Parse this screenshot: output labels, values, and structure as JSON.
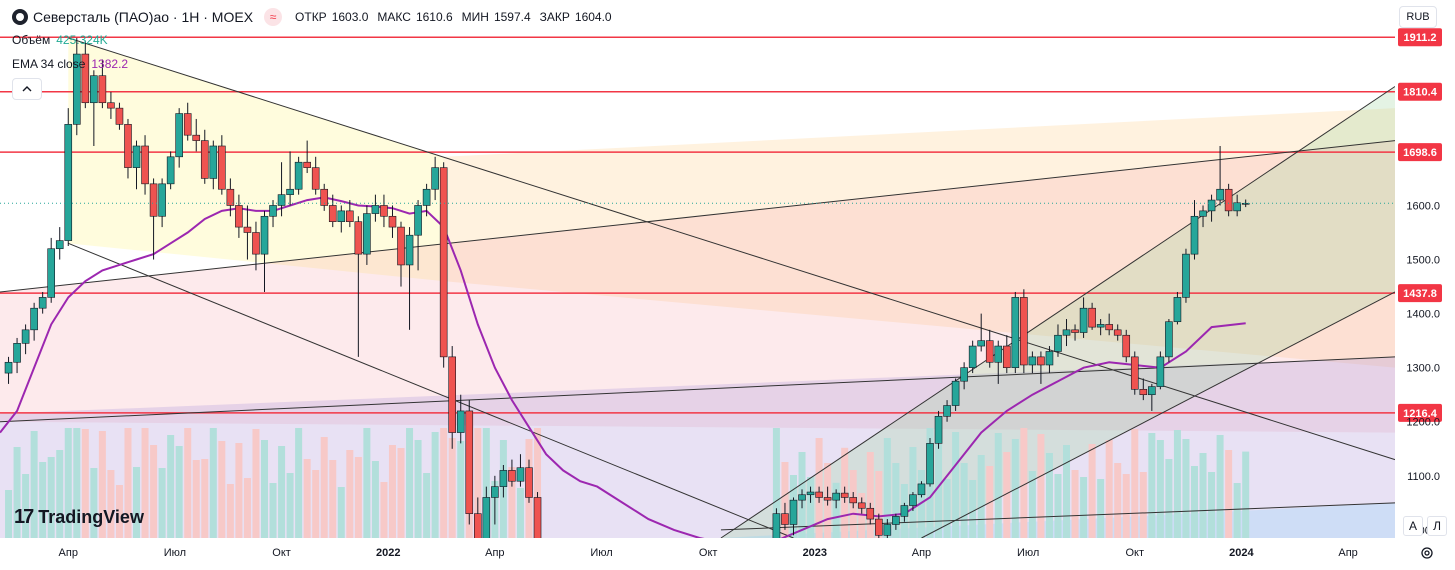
{
  "header": {
    "title": "Северсталь (ПАО)ао · 1Н · MOEX",
    "status_icon": "≈",
    "ohlc": [
      {
        "key": "ОТКР",
        "value": "1603.0"
      },
      {
        "key": "МАКС",
        "value": "1610.6"
      },
      {
        "key": "МИН",
        "value": "1597.4"
      },
      {
        "key": "ЗАКР",
        "value": "1604.0"
      }
    ],
    "volume_label": "Объём",
    "volume_value": "425.324K",
    "ema_label": "EMA 34 close",
    "ema_value": "1382.2",
    "currency": "RUB",
    "collapse_icon": "chevron-up-icon"
  },
  "branding": {
    "logo_text": "TradingView",
    "logo_mark": "17"
  },
  "controls": {
    "auto_label": "A",
    "log_label": "Л",
    "settings_icon": "gear-icon"
  },
  "chart_data": {
    "type": "candlestick",
    "ylim": [
      985,
      1980
    ],
    "y_ticks": [
      1000,
      1100,
      1200,
      1300,
      1400,
      1500,
      1600
    ],
    "x_ticks": [
      {
        "label": "Апр",
        "t": 2021.25
      },
      {
        "label": "Июл",
        "t": 2021.5
      },
      {
        "label": "Окт",
        "t": 2021.75
      },
      {
        "label": "2022",
        "t": 2022.0
      },
      {
        "label": "Апр",
        "t": 2022.25
      },
      {
        "label": "Июл",
        "t": 2022.5
      },
      {
        "label": "Окт",
        "t": 2022.75
      },
      {
        "label": "2023",
        "t": 2023.0
      },
      {
        "label": "Апр",
        "t": 2023.25
      },
      {
        "label": "Июл",
        "t": 2023.5
      },
      {
        "label": "Окт",
        "t": 2023.75
      },
      {
        "label": "2024",
        "t": 2024.0
      },
      {
        "label": "Апр",
        "t": 2024.25
      }
    ],
    "xlim": [
      2021.09,
      2024.36
    ],
    "horizontal_levels": [
      {
        "value": 1911.2,
        "label": "1911.2"
      },
      {
        "value": 1810.4,
        "label": "1810.4"
      },
      {
        "value": 1698.6,
        "label": "1698.6"
      },
      {
        "value": 1437.8,
        "label": "1437.8"
      },
      {
        "value": 1216.4,
        "label": "1216.4"
      }
    ],
    "colors": {
      "up": "#26a69a",
      "down": "#ef5350",
      "ema": "#9c27b0",
      "level": "#f23645",
      "volume_up": "#b2dfdb",
      "volume_down": "#f7c9c8"
    },
    "ohlc": [
      {
        "t": 2021.11,
        "o": 1290,
        "h": 1320,
        "l": 1270,
        "c": 1310
      },
      {
        "t": 2021.13,
        "o": 1310,
        "h": 1355,
        "l": 1290,
        "c": 1345
      },
      {
        "t": 2021.15,
        "o": 1345,
        "h": 1380,
        "l": 1325,
        "c": 1370
      },
      {
        "t": 2021.17,
        "o": 1370,
        "h": 1420,
        "l": 1350,
        "c": 1410
      },
      {
        "t": 2021.19,
        "o": 1410,
        "h": 1440,
        "l": 1400,
        "c": 1430
      },
      {
        "t": 2021.21,
        "o": 1430,
        "h": 1540,
        "l": 1420,
        "c": 1520
      },
      {
        "t": 2021.23,
        "o": 1520,
        "h": 1560,
        "l": 1500,
        "c": 1535
      },
      {
        "t": 2021.25,
        "o": 1535,
        "h": 1780,
        "l": 1525,
        "c": 1750
      },
      {
        "t": 2021.27,
        "o": 1750,
        "h": 1910,
        "l": 1730,
        "c": 1880
      },
      {
        "t": 2021.29,
        "o": 1880,
        "h": 1905,
        "l": 1780,
        "c": 1790
      },
      {
        "t": 2021.31,
        "o": 1790,
        "h": 1850,
        "l": 1710,
        "c": 1840
      },
      {
        "t": 2021.33,
        "o": 1840,
        "h": 1870,
        "l": 1780,
        "c": 1790
      },
      {
        "t": 2021.35,
        "o": 1790,
        "h": 1810,
        "l": 1760,
        "c": 1780
      },
      {
        "t": 2021.37,
        "o": 1780,
        "h": 1790,
        "l": 1740,
        "c": 1750
      },
      {
        "t": 2021.39,
        "o": 1750,
        "h": 1760,
        "l": 1650,
        "c": 1670
      },
      {
        "t": 2021.41,
        "o": 1670,
        "h": 1720,
        "l": 1630,
        "c": 1710
      },
      {
        "t": 2021.43,
        "o": 1710,
        "h": 1730,
        "l": 1620,
        "c": 1640
      },
      {
        "t": 2021.45,
        "o": 1640,
        "h": 1650,
        "l": 1500,
        "c": 1580
      },
      {
        "t": 2021.47,
        "o": 1580,
        "h": 1650,
        "l": 1560,
        "c": 1640
      },
      {
        "t": 2021.49,
        "o": 1640,
        "h": 1700,
        "l": 1630,
        "c": 1690
      },
      {
        "t": 2021.51,
        "o": 1690,
        "h": 1780,
        "l": 1670,
        "c": 1770
      },
      {
        "t": 2021.53,
        "o": 1770,
        "h": 1790,
        "l": 1720,
        "c": 1730
      },
      {
        "t": 2021.55,
        "o": 1730,
        "h": 1760,
        "l": 1700,
        "c": 1720
      },
      {
        "t": 2021.57,
        "o": 1720,
        "h": 1740,
        "l": 1640,
        "c": 1650
      },
      {
        "t": 2021.59,
        "o": 1650,
        "h": 1720,
        "l": 1630,
        "c": 1710
      },
      {
        "t": 2021.61,
        "o": 1710,
        "h": 1730,
        "l": 1620,
        "c": 1630
      },
      {
        "t": 2021.63,
        "o": 1630,
        "h": 1650,
        "l": 1580,
        "c": 1600
      },
      {
        "t": 2021.65,
        "o": 1600,
        "h": 1620,
        "l": 1540,
        "c": 1560
      },
      {
        "t": 2021.67,
        "o": 1560,
        "h": 1600,
        "l": 1500,
        "c": 1550
      },
      {
        "t": 2021.69,
        "o": 1550,
        "h": 1570,
        "l": 1480,
        "c": 1510
      },
      {
        "t": 2021.71,
        "o": 1510,
        "h": 1590,
        "l": 1440,
        "c": 1580
      },
      {
        "t": 2021.73,
        "o": 1580,
        "h": 1610,
        "l": 1560,
        "c": 1600
      },
      {
        "t": 2021.75,
        "o": 1600,
        "h": 1680,
        "l": 1580,
        "c": 1620
      },
      {
        "t": 2021.77,
        "o": 1620,
        "h": 1700,
        "l": 1600,
        "c": 1630
      },
      {
        "t": 2021.79,
        "o": 1630,
        "h": 1690,
        "l": 1620,
        "c": 1680
      },
      {
        "t": 2021.81,
        "o": 1680,
        "h": 1720,
        "l": 1660,
        "c": 1670
      },
      {
        "t": 2021.83,
        "o": 1670,
        "h": 1690,
        "l": 1620,
        "c": 1630
      },
      {
        "t": 2021.85,
        "o": 1630,
        "h": 1640,
        "l": 1590,
        "c": 1600
      },
      {
        "t": 2021.87,
        "o": 1600,
        "h": 1620,
        "l": 1560,
        "c": 1570
      },
      {
        "t": 2021.89,
        "o": 1570,
        "h": 1600,
        "l": 1550,
        "c": 1590
      },
      {
        "t": 2021.91,
        "o": 1590,
        "h": 1610,
        "l": 1560,
        "c": 1570
      },
      {
        "t": 2021.93,
        "o": 1570,
        "h": 1580,
        "l": 1320,
        "c": 1510
      },
      {
        "t": 2021.95,
        "o": 1510,
        "h": 1600,
        "l": 1490,
        "c": 1585
      },
      {
        "t": 2021.97,
        "o": 1585,
        "h": 1620,
        "l": 1570,
        "c": 1600
      },
      {
        "t": 2021.99,
        "o": 1600,
        "h": 1620,
        "l": 1560,
        "c": 1580
      },
      {
        "t": 2022.01,
        "o": 1580,
        "h": 1600,
        "l": 1540,
        "c": 1560
      },
      {
        "t": 2022.03,
        "o": 1560,
        "h": 1570,
        "l": 1450,
        "c": 1490
      },
      {
        "t": 2022.05,
        "o": 1490,
        "h": 1560,
        "l": 1370,
        "c": 1545
      },
      {
        "t": 2022.07,
        "o": 1545,
        "h": 1610,
        "l": 1480,
        "c": 1600
      },
      {
        "t": 2022.09,
        "o": 1600,
        "h": 1640,
        "l": 1580,
        "c": 1630
      },
      {
        "t": 2022.11,
        "o": 1630,
        "h": 1690,
        "l": 1610,
        "c": 1670
      },
      {
        "t": 2022.13,
        "o": 1670,
        "h": 1680,
        "l": 1300,
        "c": 1320
      },
      {
        "t": 2022.15,
        "o": 1320,
        "h": 1340,
        "l": 1150,
        "c": 1180
      },
      {
        "t": 2022.17,
        "o": 1180,
        "h": 1250,
        "l": 1160,
        "c": 1220
      },
      {
        "t": 2022.19,
        "o": 1220,
        "h": 1240,
        "l": 1010,
        "c": 1030
      },
      {
        "t": 2022.21,
        "o": 1030,
        "h": 1060,
        "l": 900,
        "c": 950
      },
      {
        "t": 2022.23,
        "o": 950,
        "h": 1080,
        "l": 920,
        "c": 1060
      },
      {
        "t": 2022.25,
        "o": 1060,
        "h": 1100,
        "l": 1010,
        "c": 1080
      },
      {
        "t": 2022.27,
        "o": 1080,
        "h": 1120,
        "l": 1060,
        "c": 1110
      },
      {
        "t": 2022.29,
        "o": 1110,
        "h": 1130,
        "l": 1080,
        "c": 1090
      },
      {
        "t": 2022.31,
        "o": 1090,
        "h": 1140,
        "l": 1080,
        "c": 1115
      },
      {
        "t": 2022.33,
        "o": 1115,
        "h": 1130,
        "l": 1050,
        "c": 1060
      },
      {
        "t": 2022.35,
        "o": 1060,
        "h": 1070,
        "l": 900,
        "c": 920
      },
      {
        "t": 2022.91,
        "o": 980,
        "h": 1040,
        "l": 970,
        "c": 1030
      },
      {
        "t": 2022.93,
        "o": 1030,
        "h": 1050,
        "l": 1000,
        "c": 1010
      },
      {
        "t": 2022.95,
        "o": 1010,
        "h": 1060,
        "l": 990,
        "c": 1055
      },
      {
        "t": 2022.97,
        "o": 1055,
        "h": 1075,
        "l": 1040,
        "c": 1065
      },
      {
        "t": 2022.99,
        "o": 1065,
        "h": 1080,
        "l": 1050,
        "c": 1070
      },
      {
        "t": 2023.01,
        "o": 1070,
        "h": 1080,
        "l": 1050,
        "c": 1060
      },
      {
        "t": 2023.03,
        "o": 1060,
        "h": 1080,
        "l": 1045,
        "c": 1055
      },
      {
        "t": 2023.05,
        "o": 1055,
        "h": 1075,
        "l": 1040,
        "c": 1068
      },
      {
        "t": 2023.07,
        "o": 1068,
        "h": 1080,
        "l": 1050,
        "c": 1060
      },
      {
        "t": 2023.09,
        "o": 1060,
        "h": 1070,
        "l": 1040,
        "c": 1050
      },
      {
        "t": 2023.11,
        "o": 1050,
        "h": 1060,
        "l": 1030,
        "c": 1040
      },
      {
        "t": 2023.13,
        "o": 1040,
        "h": 1050,
        "l": 1010,
        "c": 1020
      },
      {
        "t": 2023.15,
        "o": 1020,
        "h": 1030,
        "l": 980,
        "c": 990
      },
      {
        "t": 2023.17,
        "o": 990,
        "h": 1020,
        "l": 975,
        "c": 1010
      },
      {
        "t": 2023.19,
        "o": 1010,
        "h": 1030,
        "l": 1000,
        "c": 1025
      },
      {
        "t": 2023.21,
        "o": 1025,
        "h": 1050,
        "l": 1015,
        "c": 1045
      },
      {
        "t": 2023.23,
        "o": 1045,
        "h": 1070,
        "l": 1035,
        "c": 1065
      },
      {
        "t": 2023.25,
        "o": 1065,
        "h": 1090,
        "l": 1060,
        "c": 1085
      },
      {
        "t": 2023.27,
        "o": 1085,
        "h": 1170,
        "l": 1080,
        "c": 1160
      },
      {
        "t": 2023.29,
        "o": 1160,
        "h": 1220,
        "l": 1150,
        "c": 1210
      },
      {
        "t": 2023.31,
        "o": 1210,
        "h": 1240,
        "l": 1200,
        "c": 1230
      },
      {
        "t": 2023.33,
        "o": 1230,
        "h": 1280,
        "l": 1220,
        "c": 1275
      },
      {
        "t": 2023.35,
        "o": 1275,
        "h": 1310,
        "l": 1260,
        "c": 1300
      },
      {
        "t": 2023.37,
        "o": 1300,
        "h": 1350,
        "l": 1290,
        "c": 1340
      },
      {
        "t": 2023.39,
        "o": 1340,
        "h": 1400,
        "l": 1330,
        "c": 1350
      },
      {
        "t": 2023.41,
        "o": 1350,
        "h": 1370,
        "l": 1300,
        "c": 1310
      },
      {
        "t": 2023.43,
        "o": 1310,
        "h": 1350,
        "l": 1270,
        "c": 1340
      },
      {
        "t": 2023.45,
        "o": 1340,
        "h": 1360,
        "l": 1290,
        "c": 1300
      },
      {
        "t": 2023.47,
        "o": 1300,
        "h": 1440,
        "l": 1290,
        "c": 1430
      },
      {
        "t": 2023.49,
        "o": 1430,
        "h": 1445,
        "l": 1290,
        "c": 1305
      },
      {
        "t": 2023.51,
        "o": 1305,
        "h": 1330,
        "l": 1290,
        "c": 1320
      },
      {
        "t": 2023.53,
        "o": 1320,
        "h": 1330,
        "l": 1270,
        "c": 1305
      },
      {
        "t": 2023.55,
        "o": 1305,
        "h": 1340,
        "l": 1290,
        "c": 1330
      },
      {
        "t": 2023.57,
        "o": 1330,
        "h": 1380,
        "l": 1320,
        "c": 1360
      },
      {
        "t": 2023.59,
        "o": 1360,
        "h": 1390,
        "l": 1340,
        "c": 1370
      },
      {
        "t": 2023.61,
        "o": 1370,
        "h": 1380,
        "l": 1350,
        "c": 1365
      },
      {
        "t": 2023.63,
        "o": 1365,
        "h": 1430,
        "l": 1355,
        "c": 1410
      },
      {
        "t": 2023.65,
        "o": 1410,
        "h": 1420,
        "l": 1370,
        "c": 1375
      },
      {
        "t": 2023.67,
        "o": 1375,
        "h": 1390,
        "l": 1360,
        "c": 1380
      },
      {
        "t": 2023.69,
        "o": 1380,
        "h": 1400,
        "l": 1360,
        "c": 1370
      },
      {
        "t": 2023.71,
        "o": 1370,
        "h": 1380,
        "l": 1350,
        "c": 1360
      },
      {
        "t": 2023.73,
        "o": 1360,
        "h": 1370,
        "l": 1310,
        "c": 1320
      },
      {
        "t": 2023.75,
        "o": 1320,
        "h": 1330,
        "l": 1250,
        "c": 1260
      },
      {
        "t": 2023.77,
        "o": 1260,
        "h": 1280,
        "l": 1240,
        "c": 1250
      },
      {
        "t": 2023.79,
        "o": 1250,
        "h": 1270,
        "l": 1220,
        "c": 1265
      },
      {
        "t": 2023.81,
        "o": 1265,
        "h": 1330,
        "l": 1260,
        "c": 1320
      },
      {
        "t": 2023.83,
        "o": 1320,
        "h": 1390,
        "l": 1310,
        "c": 1385
      },
      {
        "t": 2023.85,
        "o": 1385,
        "h": 1440,
        "l": 1380,
        "c": 1430
      },
      {
        "t": 2023.87,
        "o": 1430,
        "h": 1520,
        "l": 1420,
        "c": 1510
      },
      {
        "t": 2023.89,
        "o": 1510,
        "h": 1610,
        "l": 1500,
        "c": 1580
      },
      {
        "t": 2023.91,
        "o": 1580,
        "h": 1600,
        "l": 1560,
        "c": 1590
      },
      {
        "t": 2023.93,
        "o": 1590,
        "h": 1620,
        "l": 1570,
        "c": 1610
      },
      {
        "t": 2023.95,
        "o": 1610,
        "h": 1710,
        "l": 1600,
        "c": 1630
      },
      {
        "t": 2023.97,
        "o": 1630,
        "h": 1640,
        "l": 1580,
        "c": 1590
      },
      {
        "t": 2023.99,
        "o": 1590,
        "h": 1620,
        "l": 1580,
        "c": 1605
      },
      {
        "t": 2024.01,
        "o": 1603,
        "h": 1611,
        "l": 1597,
        "c": 1604
      }
    ],
    "ema": [
      [
        2021.09,
        1180
      ],
      [
        2021.13,
        1220
      ],
      [
        2021.17,
        1300
      ],
      [
        2021.21,
        1380
      ],
      [
        2021.25,
        1430
      ],
      [
        2021.29,
        1460
      ],
      [
        2021.33,
        1480
      ],
      [
        2021.37,
        1490
      ],
      [
        2021.41,
        1500
      ],
      [
        2021.45,
        1510
      ],
      [
        2021.49,
        1530
      ],
      [
        2021.53,
        1550
      ],
      [
        2021.57,
        1575
      ],
      [
        2021.61,
        1590
      ],
      [
        2021.65,
        1595
      ],
      [
        2021.69,
        1590
      ],
      [
        2021.73,
        1590
      ],
      [
        2021.77,
        1600
      ],
      [
        2021.81,
        1610
      ],
      [
        2021.85,
        1615
      ],
      [
        2021.89,
        1608
      ],
      [
        2021.93,
        1600
      ],
      [
        2021.97,
        1598
      ],
      [
        2022.01,
        1595
      ],
      [
        2022.05,
        1585
      ],
      [
        2022.09,
        1590
      ],
      [
        2022.13,
        1560
      ],
      [
        2022.17,
        1480
      ],
      [
        2022.21,
        1380
      ],
      [
        2022.25,
        1300
      ],
      [
        2022.29,
        1240
      ],
      [
        2022.33,
        1190
      ],
      [
        2022.37,
        1140
      ],
      [
        2022.41,
        1110
      ],
      [
        2022.45,
        1090
      ],
      [
        2022.49,
        1080
      ],
      [
        2022.55,
        1050
      ],
      [
        2022.61,
        1020
      ],
      [
        2022.67,
        1000
      ],
      [
        2022.73,
        985
      ],
      [
        2022.79,
        975
      ],
      [
        2022.85,
        975
      ],
      [
        2022.91,
        980
      ],
      [
        2022.97,
        1000
      ],
      [
        2023.03,
        1020
      ],
      [
        2023.09,
        1030
      ],
      [
        2023.15,
        1025
      ],
      [
        2023.21,
        1030
      ],
      [
        2023.27,
        1060
      ],
      [
        2023.33,
        1120
      ],
      [
        2023.39,
        1180
      ],
      [
        2023.45,
        1220
      ],
      [
        2023.51,
        1250
      ],
      [
        2023.57,
        1275
      ],
      [
        2023.63,
        1300
      ],
      [
        2023.69,
        1310
      ],
      [
        2023.75,
        1305
      ],
      [
        2023.81,
        1300
      ],
      [
        2023.87,
        1330
      ],
      [
        2023.93,
        1375
      ],
      [
        2024.01,
        1382
      ]
    ]
  }
}
